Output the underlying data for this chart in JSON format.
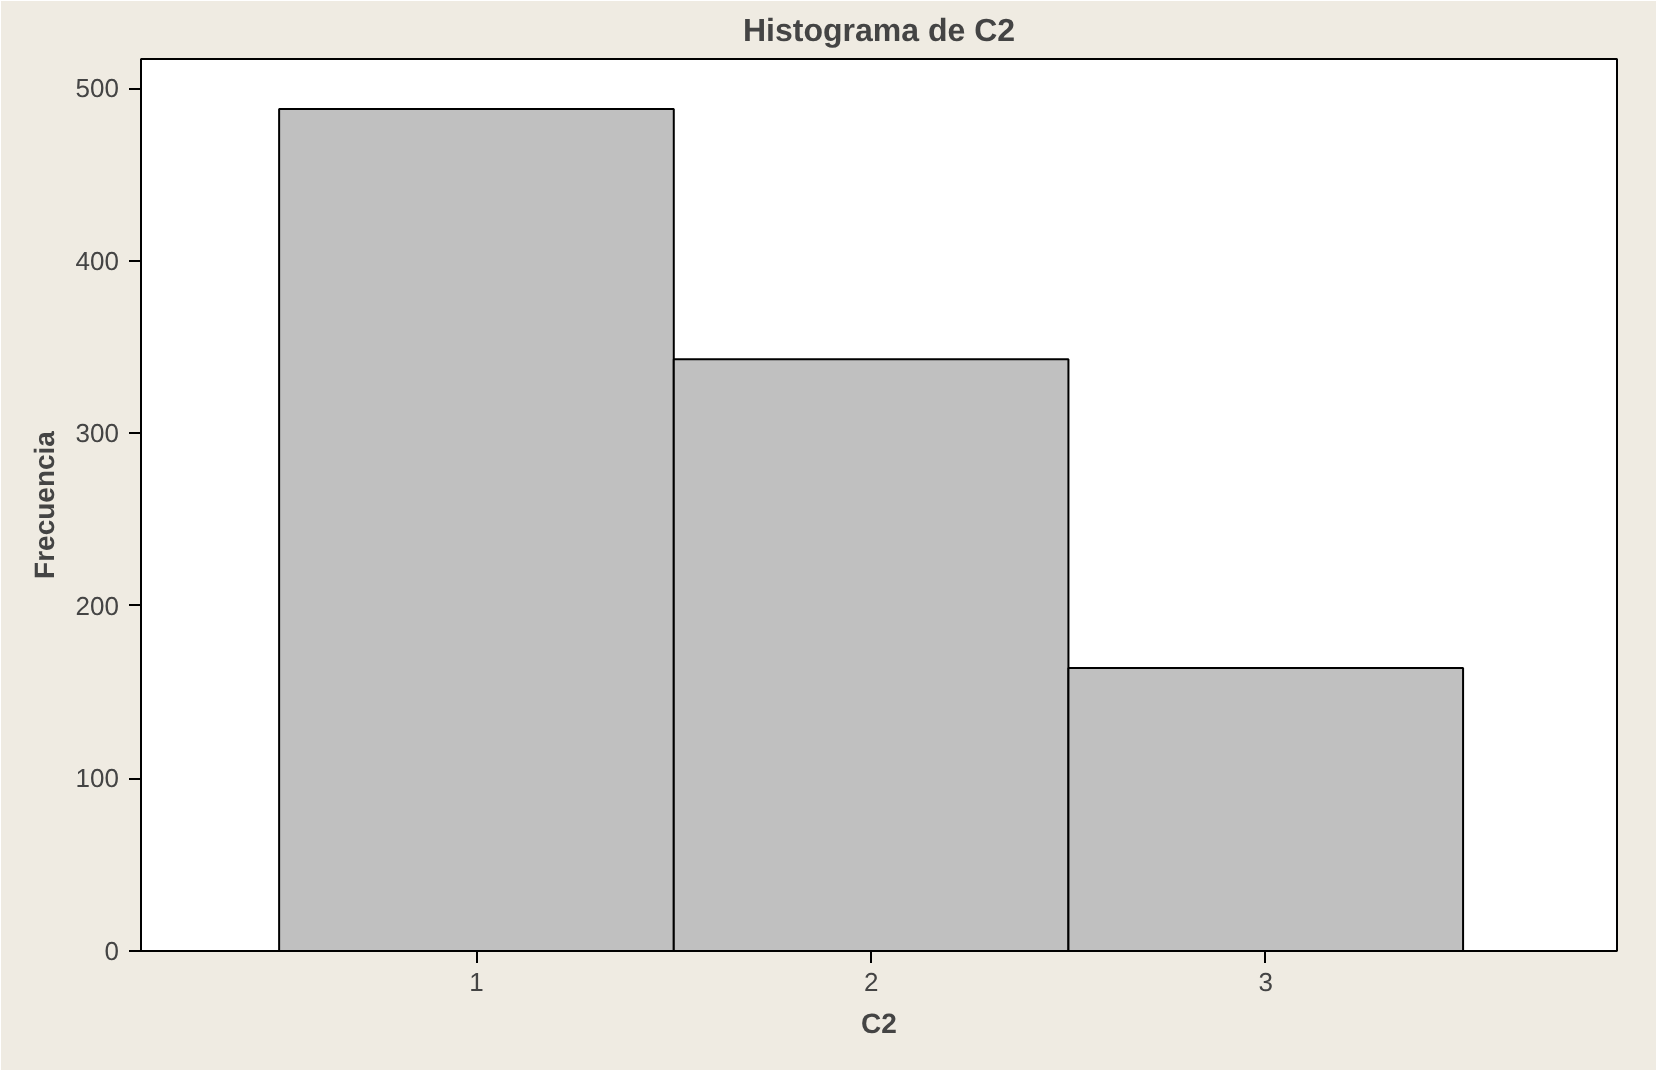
{
  "chart_data": {
    "type": "histogram",
    "title": "Histograma de C2",
    "xlabel": "C2",
    "ylabel": "Frecuencia",
    "bins": [
      0.5,
      1.5,
      2.5,
      3.5
    ],
    "values": [
      488,
      343,
      164
    ],
    "color": "#c0c0c0",
    "xlim": [
      0.15,
      3.89
    ],
    "xticks": [
      1,
      2,
      3
    ],
    "ylim": [
      0,
      517
    ],
    "yticks": [
      0,
      100,
      200,
      300,
      400,
      500
    ],
    "grid": false
  }
}
